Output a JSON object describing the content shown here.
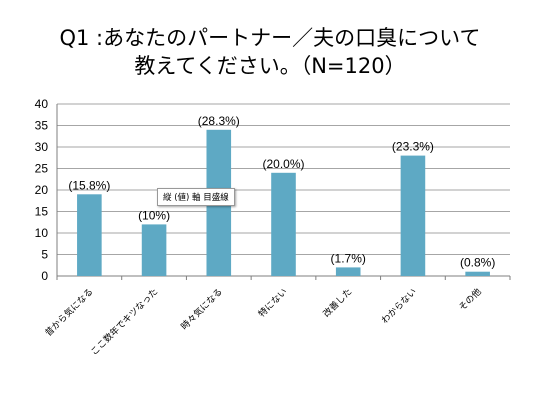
{
  "title_line1": "Q1 :あなたのパートナー／夫の口臭について",
  "title_line2": "教えてください。（N=120）",
  "tooltip": "縦 (値) 軸 目盛線",
  "colors": {
    "bar": "#5ea9c4",
    "grid": "#a6a6a6",
    "axis": "#7f7f7f"
  },
  "chart_data": {
    "type": "bar",
    "title": "Q1 :あなたのパートナー／夫の口臭について 教えてください。（N=120）",
    "categories": [
      "昔から気になる",
      "ここ数年でキツなった",
      "時々気になる",
      "特にない",
      "改善した",
      "わからない",
      "その他"
    ],
    "values": [
      19,
      12,
      34,
      24,
      2,
      28,
      1
    ],
    "data_labels": [
      "(15.8%)",
      "(10%)",
      "(28.3%)",
      "(20.0%)",
      "(1.7%)",
      "(23.3%)",
      "(0.8%)"
    ],
    "ylim": [
      0,
      40
    ],
    "yticks": [
      0,
      5,
      10,
      15,
      20,
      25,
      30,
      35,
      40
    ],
    "grid": true,
    "legend": "none"
  }
}
